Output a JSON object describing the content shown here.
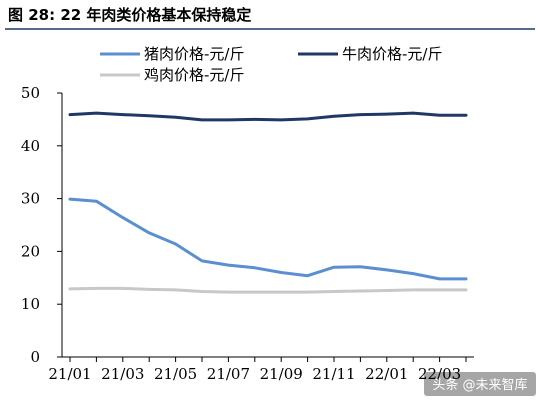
{
  "figure_title": "图 28:  22 年肉类价格基本保持稳定",
  "watermark": "头条 @未来智库",
  "colors": {
    "title_rule": "#1f3864",
    "pork": "#5b8fd0",
    "beef": "#1f3864",
    "chicken": "#c8c8c8",
    "axis": "#000000"
  },
  "chart_data": {
    "type": "line",
    "title": "",
    "xlabel": "",
    "ylabel": "",
    "ylim": [
      0,
      50
    ],
    "yticks": [
      0,
      10,
      20,
      30,
      40,
      50
    ],
    "grid": false,
    "legend_position": "top",
    "x": [
      "21/01",
      "21/02",
      "21/03",
      "21/04",
      "21/05",
      "21/06",
      "21/07",
      "21/08",
      "21/09",
      "21/10",
      "21/11",
      "21/12",
      "22/01",
      "22/02",
      "22/03",
      "22/04"
    ],
    "xtick_labels": [
      "21/01",
      "21/03",
      "21/05",
      "21/07",
      "21/09",
      "21/11",
      "22/01",
      "22/03"
    ],
    "series": [
      {
        "name": "猪肉价格-元/斤",
        "color": "#5b8fd0",
        "values": [
          29.9,
          29.5,
          26.4,
          23.5,
          21.4,
          18.2,
          17.4,
          16.9,
          16.0,
          15.4,
          17.0,
          17.1,
          16.5,
          15.8,
          14.8,
          14.8
        ]
      },
      {
        "name": "牛肉价格-元/斤",
        "color": "#1f3864",
        "values": [
          45.9,
          46.2,
          45.9,
          45.7,
          45.4,
          44.9,
          44.9,
          45.0,
          44.9,
          45.1,
          45.6,
          45.9,
          46.0,
          46.2,
          45.8,
          45.8
        ]
      },
      {
        "name": "鸡肉价格-元/斤",
        "color": "#c8c8c8",
        "values": [
          12.9,
          13.0,
          13.0,
          12.8,
          12.7,
          12.4,
          12.3,
          12.3,
          12.3,
          12.3,
          12.4,
          12.5,
          12.6,
          12.7,
          12.7,
          12.7
        ]
      }
    ]
  }
}
